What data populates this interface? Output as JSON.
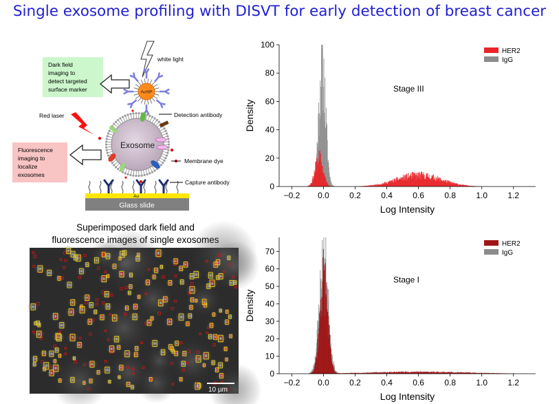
{
  "title": "Single exosome profiling with DISVT for early detection of breast cancer",
  "schematic": {
    "white_light": "white light",
    "dark_field_box": [
      "Dark field",
      "imaging to",
      "detect targeted",
      "surface marker"
    ],
    "aunp": "AuNP",
    "detection_antibody": "Detection antibody",
    "red_laser": "Red laser",
    "exosome": "Exosome",
    "fluorescence_box": [
      "Fluorescence",
      "imaging to",
      "localize",
      "exosomes"
    ],
    "membrane_dye": "Membrane dye",
    "capture_antibody": "Capture antibody",
    "au_layer": "Au",
    "glass_slide": "Glass slide",
    "colors": {
      "dark_field_box": "#ccf7cc",
      "fluorescence_box": "#f9c4c4",
      "aunp": "#ff8a1c",
      "exosome": "#c9b8c9",
      "gold": "#ffe600",
      "glass": "#808080",
      "antibody": "#1e2e6e"
    }
  },
  "composite": {
    "caption": [
      "Superimposed dark field and",
      "fluorescence images of single exosomes"
    ],
    "scale_bar": "10 µm"
  },
  "chart_data": [
    {
      "type": "histogram",
      "annotation": "Stage III",
      "xlabel": "Log Intensity",
      "ylabel": "Density",
      "xlim": [
        -0.28,
        1.34
      ],
      "ylim": [
        0,
        100
      ],
      "xticks": [
        -0.2,
        0.0,
        0.2,
        0.4,
        0.6,
        0.8,
        1.0,
        1.2
      ],
      "yticks": [
        0,
        20,
        40,
        60,
        80,
        100
      ],
      "legend_position": "top-right",
      "series": [
        {
          "name": "HER2",
          "color": "#e8262a",
          "components": [
            {
              "mu": -0.03,
              "sigma": 0.025,
              "peak": 22
            },
            {
              "mu": 0.6,
              "sigma": 0.14,
              "peak": 9
            }
          ]
        },
        {
          "name": "IgG",
          "color": "#8c8c8c",
          "components": [
            {
              "mu": -0.01,
              "sigma": 0.022,
              "peak": 95
            }
          ]
        }
      ]
    },
    {
      "type": "histogram",
      "annotation": "Stage I",
      "xlabel": "Log Intensity",
      "ylabel": "Density",
      "xlim": [
        -0.28,
        1.34
      ],
      "ylim": [
        0,
        78
      ],
      "xticks": [
        -0.2,
        0.0,
        0.2,
        0.4,
        0.6,
        0.8,
        1.0,
        1.2
      ],
      "yticks": [
        0,
        10,
        20,
        30,
        40,
        50,
        60,
        70
      ],
      "legend_position": "top-right",
      "series": [
        {
          "name": "HER2",
          "color": "#a01515",
          "components": [
            {
              "mu": 0.0,
              "sigma": 0.025,
              "peak": 62
            },
            {
              "mu": 0.6,
              "sigma": 0.3,
              "peak": 1.2
            }
          ]
        },
        {
          "name": "IgG",
          "color": "#8c8c8c",
          "components": [
            {
              "mu": 0.0,
              "sigma": 0.028,
              "peak": 74
            }
          ]
        }
      ]
    }
  ]
}
